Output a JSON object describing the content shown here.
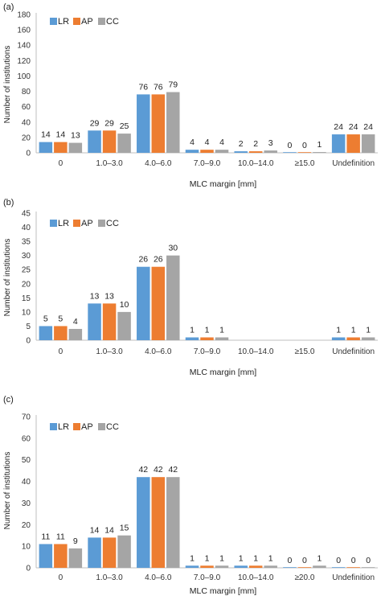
{
  "colors": {
    "LR": "#5b9bd5",
    "AP": "#ed7d31",
    "CC": "#a5a5a5"
  },
  "panels": [
    {
      "label": "(a)",
      "ylabel": "Number of institutions",
      "xlabel": "MLC margin [mm]"
    },
    {
      "label": "(b)",
      "ylabel": "Number of institutions",
      "xlabel": "MLC margin [mm]"
    },
    {
      "label": "(c)",
      "ylabel": "Number of institutions",
      "xlabel": "MLC margin [mm]"
    }
  ],
  "chart_data": [
    {
      "type": "bar",
      "categories": [
        "0",
        "1.0–3.0",
        "4.0–6.0",
        "7.0–9.0",
        "10.0–14.0",
        "≥15.0",
        "Undefinition"
      ],
      "series": [
        {
          "name": "LR",
          "values": [
            14,
            29,
            76,
            4,
            2,
            0,
            24
          ]
        },
        {
          "name": "AP",
          "values": [
            14,
            29,
            76,
            4,
            2,
            0,
            24
          ]
        },
        {
          "name": "CC",
          "values": [
            13,
            25,
            79,
            4,
            3,
            1,
            24
          ]
        }
      ],
      "ylim": [
        0,
        180
      ],
      "yticks": [
        0,
        20,
        40,
        60,
        80,
        100,
        120,
        140,
        160,
        180
      ],
      "xlabel": "MLC margin [mm]",
      "ylabel": "Number of institutions",
      "legend": "top-left",
      "grid": false
    },
    {
      "type": "bar",
      "categories": [
        "0",
        "1.0–3.0",
        "4.0–6.0",
        "7.0–9.0",
        "10.0–14.0",
        "≥15.0",
        "Undefinition"
      ],
      "series": [
        {
          "name": "LR",
          "values": [
            5,
            13,
            26,
            1,
            null,
            null,
            1
          ]
        },
        {
          "name": "AP",
          "values": [
            5,
            13,
            26,
            1,
            null,
            null,
            1
          ]
        },
        {
          "name": "CC",
          "values": [
            4,
            10,
            30,
            1,
            null,
            null,
            1
          ]
        }
      ],
      "ylim": [
        0,
        45
      ],
      "yticks": [
        0,
        5,
        10,
        15,
        20,
        25,
        30,
        35,
        40,
        45
      ],
      "xlabel": "MLC margin [mm]",
      "ylabel": "Number of institutions",
      "legend": "top-left",
      "grid": false
    },
    {
      "type": "bar",
      "categories": [
        "0",
        "1.0–3.0",
        "4.0–6.0",
        "7.0–9.0",
        "10.0–14.0",
        "≥20.0",
        "Undefinition"
      ],
      "series": [
        {
          "name": "LR",
          "values": [
            11,
            14,
            42,
            1,
            1,
            0,
            0
          ]
        },
        {
          "name": "AP",
          "values": [
            11,
            14,
            42,
            1,
            1,
            0,
            0
          ]
        },
        {
          "name": "CC",
          "values": [
            9,
            15,
            42,
            1,
            1,
            1,
            0
          ]
        }
      ],
      "ylim": [
        0,
        70
      ],
      "yticks": [
        0,
        10,
        20,
        30,
        40,
        50,
        60,
        70
      ],
      "xlabel": "MLC margin [mm]",
      "ylabel": "Number of institutions",
      "legend": "top-left",
      "grid": false
    }
  ]
}
